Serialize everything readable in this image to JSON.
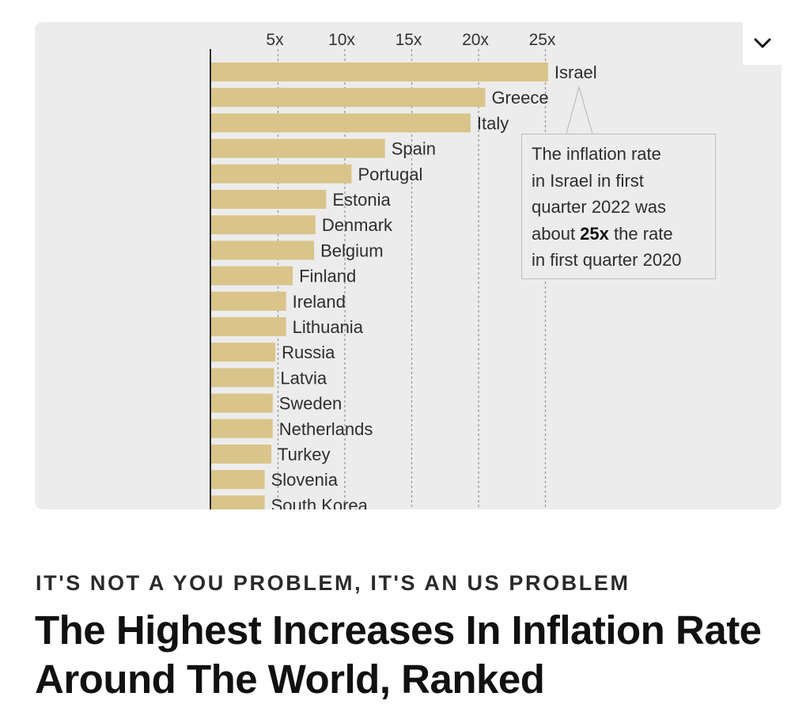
{
  "chart_data": {
    "type": "bar",
    "orientation": "horizontal",
    "x_ticks": [
      "5x",
      "10x",
      "15x",
      "20x",
      "25x"
    ],
    "x_tick_values": [
      5,
      10,
      15,
      20,
      25
    ],
    "xlim": [
      0,
      25
    ],
    "grid": true,
    "categories": [
      "Israel",
      "Greece",
      "Italy",
      "Spain",
      "Portugal",
      "Estonia",
      "Denmark",
      "Belgium",
      "Finland",
      "Ireland",
      "Lithuania",
      "Russia",
      "Latvia",
      "Sweden",
      "Netherlands",
      "Turkey",
      "Slovenia",
      "South Korea"
    ],
    "values": [
      25.2,
      20.5,
      19.4,
      13.0,
      10.5,
      8.6,
      7.8,
      7.7,
      6.1,
      5.6,
      5.6,
      4.8,
      4.7,
      4.6,
      4.6,
      4.5,
      4.0,
      4.0
    ],
    "bar_color": "#d9c48a",
    "annotation": {
      "target": "Israel",
      "line1": "The inflation rate",
      "line2": "in Israel in first",
      "line3": "quarter 2022 was",
      "line4_pre": "about ",
      "line4_bold": "25x",
      "line4_post": " the rate",
      "line5": "in first quarter 2020"
    }
  },
  "article": {
    "kicker": "IT'S NOT A YOU PROBLEM, IT'S AN US PROBLEM",
    "headline": "The Highest Increases In Inflation Rate Around The World, Ranked"
  },
  "controls": {
    "expand_icon": "chevron-down-icon"
  }
}
